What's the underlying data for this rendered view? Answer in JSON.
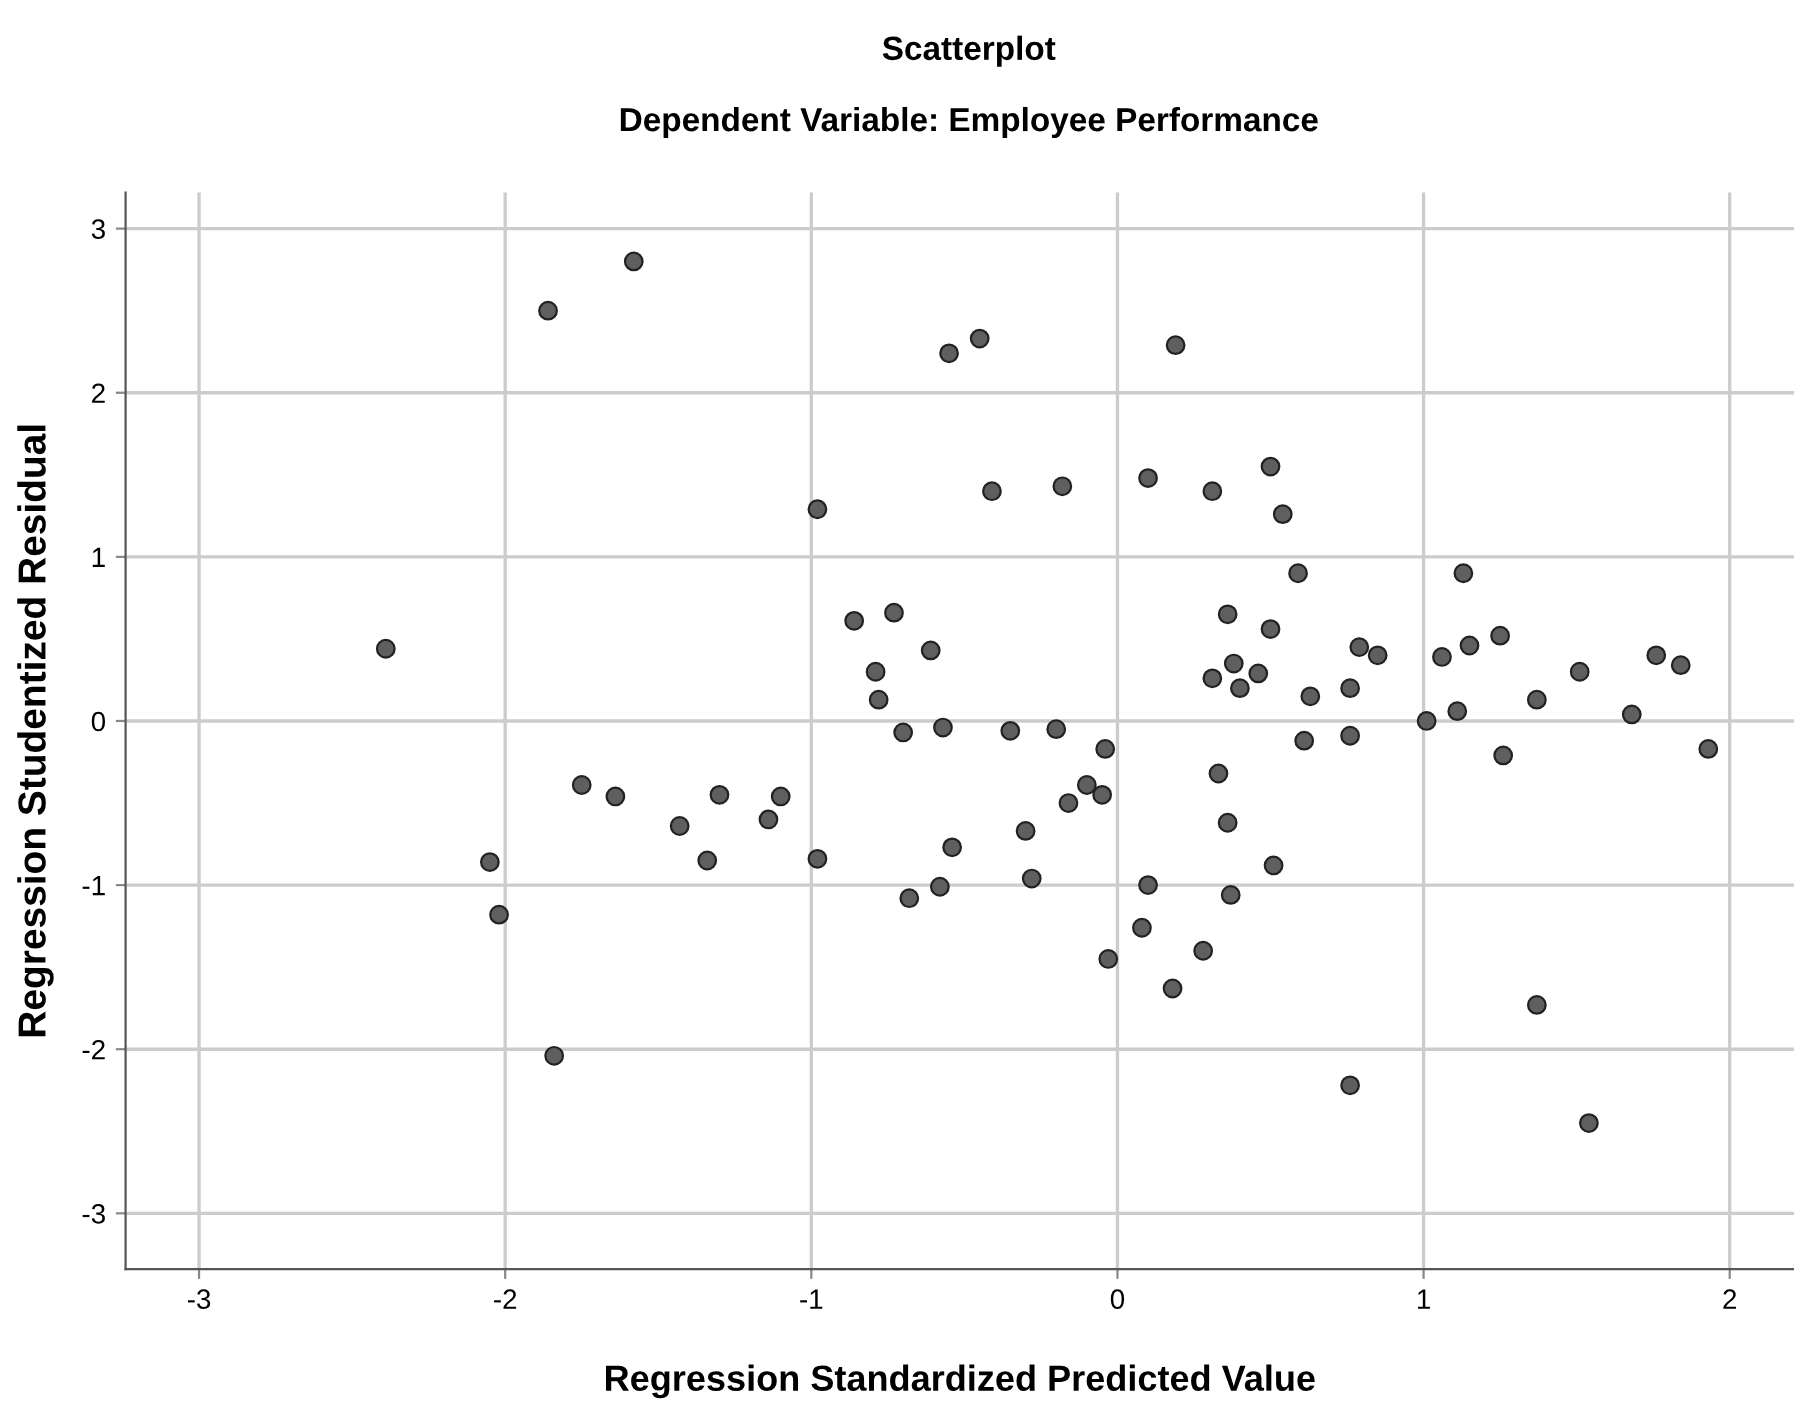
{
  "chart_data": {
    "type": "scatter",
    "title": "Scatterplot",
    "subtitle": "Dependent Variable: Employee Performance",
    "xlabel": "Regression Standardized Predicted Value",
    "ylabel": "Regression Studentized Residual",
    "xlim": [
      -3.24,
      2.21
    ],
    "ylim": [
      -3.34,
      3.22
    ],
    "xticks": [
      -3,
      -2,
      -1,
      0,
      1,
      2
    ],
    "yticks": [
      -3,
      -2,
      -1,
      0,
      1,
      2,
      3
    ],
    "grid": true,
    "marker": "circle",
    "series": [
      {
        "color": "#5f5f5f",
        "x": [
          -2.39,
          -1.86,
          -1.58,
          -0.98,
          -0.55,
          -0.45,
          0.19,
          -0.41,
          -0.18,
          0.1,
          0.31,
          0.5,
          0.54,
          0.59,
          1.13,
          -0.86,
          -0.73,
          -0.61,
          -0.79,
          -0.78,
          -0.7,
          -0.57,
          0.36,
          0.5,
          0.79,
          0.85,
          0.31,
          0.38,
          0.4,
          0.46,
          0.63,
          0.76,
          1.06,
          1.15,
          1.25,
          1.37,
          1.51,
          1.76,
          1.84,
          1.01,
          1.11,
          1.68,
          -1.75,
          -1.64,
          -1.43,
          -1.3,
          -1.1,
          -1.14,
          -1.34,
          -0.98,
          -2.05,
          -2.02,
          -1.84,
          -0.54,
          -0.68,
          -0.58,
          -0.35,
          -0.2,
          -0.04,
          -0.1,
          -0.16,
          -0.05,
          -0.3,
          -0.28,
          0.33,
          0.36,
          0.61,
          0.76,
          1.26,
          1.93,
          0.51,
          0.37,
          0.1,
          0.08,
          -0.03,
          0.28,
          0.18,
          1.37,
          0.76,
          1.54
        ],
        "values": [
          0.44,
          2.5,
          2.8,
          1.29,
          2.24,
          2.33,
          2.29,
          1.4,
          1.43,
          1.48,
          1.4,
          1.55,
          1.26,
          0.9,
          0.9,
          0.61,
          0.66,
          0.43,
          0.3,
          0.13,
          -0.07,
          -0.04,
          0.65,
          0.56,
          0.45,
          0.4,
          0.26,
          0.35,
          0.2,
          0.29,
          0.15,
          0.2,
          0.39,
          0.46,
          0.52,
          0.13,
          0.3,
          0.4,
          0.34,
          0.0,
          0.06,
          0.04,
          -0.39,
          -0.46,
          -0.64,
          -0.45,
          -0.46,
          -0.6,
          -0.85,
          -0.84,
          -0.86,
          -1.18,
          -2.04,
          -0.77,
          -1.08,
          -1.01,
          -0.06,
          -0.05,
          -0.17,
          -0.39,
          -0.5,
          -0.45,
          -0.67,
          -0.96,
          -0.32,
          -0.62,
          -0.12,
          -0.09,
          -0.21,
          -0.17,
          -0.88,
          -1.06,
          -1.0,
          -1.26,
          -1.45,
          -1.4,
          -1.63,
          -1.73,
          -2.22,
          -2.45
        ]
      }
    ]
  }
}
